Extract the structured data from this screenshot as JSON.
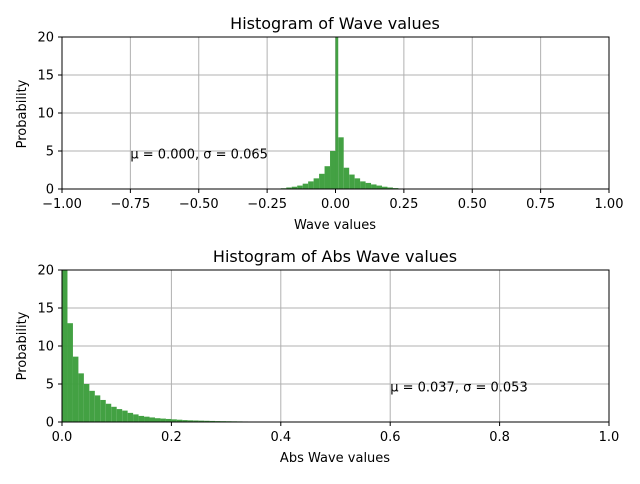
{
  "chart_data": [
    {
      "type": "bar",
      "title": "Histogram of Wave values",
      "xlabel": "Wave values",
      "ylabel": "Probability",
      "xlim": [
        -1.0,
        1.0
      ],
      "ylim": [
        0,
        20
      ],
      "grid": true,
      "xticks": [
        "−1.00",
        "−0.75",
        "−0.50",
        "−0.25",
        "0.00",
        "0.25",
        "0.50",
        "0.75",
        "1.00"
      ],
      "xtick_values": [
        -1.0,
        -0.75,
        -0.5,
        -0.25,
        0.0,
        0.25,
        0.5,
        0.75,
        1.0
      ],
      "yticks": [
        "0",
        "5",
        "10",
        "15",
        "20"
      ],
      "ytick_values": [
        0,
        5,
        10,
        15,
        20
      ],
      "annotation": {
        "text": "μ = 0.000,  σ = 0.065",
        "x": -0.75,
        "y": 4.0
      },
      "bar_color": "#3f9f3f",
      "bins": [
        {
          "x0": -0.22,
          "x1": -0.2,
          "value": 0.05
        },
        {
          "x0": -0.2,
          "x1": -0.18,
          "value": 0.1
        },
        {
          "x0": -0.18,
          "x1": -0.16,
          "value": 0.2
        },
        {
          "x0": -0.16,
          "x1": -0.14,
          "value": 0.3
        },
        {
          "x0": -0.14,
          "x1": -0.12,
          "value": 0.45
        },
        {
          "x0": -0.12,
          "x1": -0.1,
          "value": 0.7
        },
        {
          "x0": -0.1,
          "x1": -0.08,
          "value": 1.0
        },
        {
          "x0": -0.08,
          "x1": -0.06,
          "value": 1.4
        },
        {
          "x0": -0.06,
          "x1": -0.04,
          "value": 2.0
        },
        {
          "x0": -0.04,
          "x1": -0.02,
          "value": 3.0
        },
        {
          "x0": -0.02,
          "x1": 0.0,
          "value": 5.0
        },
        {
          "x0": 0.0,
          "x1": 0.01,
          "value": 20.0
        },
        {
          "x0": 0.01,
          "x1": 0.03,
          "value": 6.8
        },
        {
          "x0": 0.03,
          "x1": 0.05,
          "value": 2.8
        },
        {
          "x0": 0.05,
          "x1": 0.07,
          "value": 1.9
        },
        {
          "x0": 0.07,
          "x1": 0.09,
          "value": 1.4
        },
        {
          "x0": 0.09,
          "x1": 0.11,
          "value": 1.0
        },
        {
          "x0": 0.11,
          "x1": 0.13,
          "value": 0.8
        },
        {
          "x0": 0.13,
          "x1": 0.15,
          "value": 0.6
        },
        {
          "x0": 0.15,
          "x1": 0.17,
          "value": 0.45
        },
        {
          "x0": 0.17,
          "x1": 0.19,
          "value": 0.3
        },
        {
          "x0": 0.19,
          "x1": 0.21,
          "value": 0.2
        },
        {
          "x0": 0.21,
          "x1": 0.23,
          "value": 0.12
        },
        {
          "x0": 0.23,
          "x1": 0.25,
          "value": 0.06
        }
      ]
    },
    {
      "type": "bar",
      "title": "Histogram of Abs Wave values",
      "xlabel": "Abs Wave values",
      "ylabel": "Probability",
      "xlim": [
        0,
        1.0
      ],
      "ylim": [
        0,
        20
      ],
      "grid": true,
      "xticks": [
        "0.0",
        "0.2",
        "0.4",
        "0.6",
        "0.8",
        "1.0"
      ],
      "xtick_values": [
        0.0,
        0.2,
        0.4,
        0.6,
        0.8,
        1.0
      ],
      "yticks": [
        "0",
        "5",
        "10",
        "15",
        "20"
      ],
      "ytick_values": [
        0,
        5,
        10,
        15,
        20
      ],
      "annotation": {
        "text": "μ = 0.037,  σ = 0.053",
        "x": 0.6,
        "y": 4.0
      },
      "bar_color": "#3f9f3f",
      "bins": [
        {
          "x0": 0.0,
          "x1": 0.01,
          "value": 20.0
        },
        {
          "x0": 0.01,
          "x1": 0.02,
          "value": 13.0
        },
        {
          "x0": 0.02,
          "x1": 0.03,
          "value": 8.6
        },
        {
          "x0": 0.03,
          "x1": 0.04,
          "value": 6.4
        },
        {
          "x0": 0.04,
          "x1": 0.05,
          "value": 5.0
        },
        {
          "x0": 0.05,
          "x1": 0.06,
          "value": 4.1
        },
        {
          "x0": 0.06,
          "x1": 0.07,
          "value": 3.5
        },
        {
          "x0": 0.07,
          "x1": 0.08,
          "value": 2.9
        },
        {
          "x0": 0.08,
          "x1": 0.09,
          "value": 2.4
        },
        {
          "x0": 0.09,
          "x1": 0.1,
          "value": 2.0
        },
        {
          "x0": 0.1,
          "x1": 0.11,
          "value": 1.7
        },
        {
          "x0": 0.11,
          "x1": 0.12,
          "value": 1.5
        },
        {
          "x0": 0.12,
          "x1": 0.13,
          "value": 1.2
        },
        {
          "x0": 0.13,
          "x1": 0.14,
          "value": 1.0
        },
        {
          "x0": 0.14,
          "x1": 0.15,
          "value": 0.8
        },
        {
          "x0": 0.15,
          "x1": 0.16,
          "value": 0.7
        },
        {
          "x0": 0.16,
          "x1": 0.17,
          "value": 0.6
        },
        {
          "x0": 0.17,
          "x1": 0.18,
          "value": 0.5
        },
        {
          "x0": 0.18,
          "x1": 0.19,
          "value": 0.45
        },
        {
          "x0": 0.19,
          "x1": 0.2,
          "value": 0.4
        },
        {
          "x0": 0.2,
          "x1": 0.21,
          "value": 0.35
        },
        {
          "x0": 0.21,
          "x1": 0.22,
          "value": 0.3
        },
        {
          "x0": 0.22,
          "x1": 0.23,
          "value": 0.25
        },
        {
          "x0": 0.23,
          "x1": 0.24,
          "value": 0.22
        },
        {
          "x0": 0.24,
          "x1": 0.25,
          "value": 0.2
        },
        {
          "x0": 0.25,
          "x1": 0.26,
          "value": 0.18
        },
        {
          "x0": 0.26,
          "x1": 0.27,
          "value": 0.16
        },
        {
          "x0": 0.27,
          "x1": 0.28,
          "value": 0.14
        },
        {
          "x0": 0.28,
          "x1": 0.29,
          "value": 0.12
        },
        {
          "x0": 0.29,
          "x1": 0.3,
          "value": 0.11
        },
        {
          "x0": 0.3,
          "x1": 0.31,
          "value": 0.1
        },
        {
          "x0": 0.31,
          "x1": 0.32,
          "value": 0.09
        },
        {
          "x0": 0.32,
          "x1": 0.33,
          "value": 0.08
        },
        {
          "x0": 0.33,
          "x1": 0.34,
          "value": 0.07
        },
        {
          "x0": 0.34,
          "x1": 0.35,
          "value": 0.06
        }
      ]
    }
  ]
}
